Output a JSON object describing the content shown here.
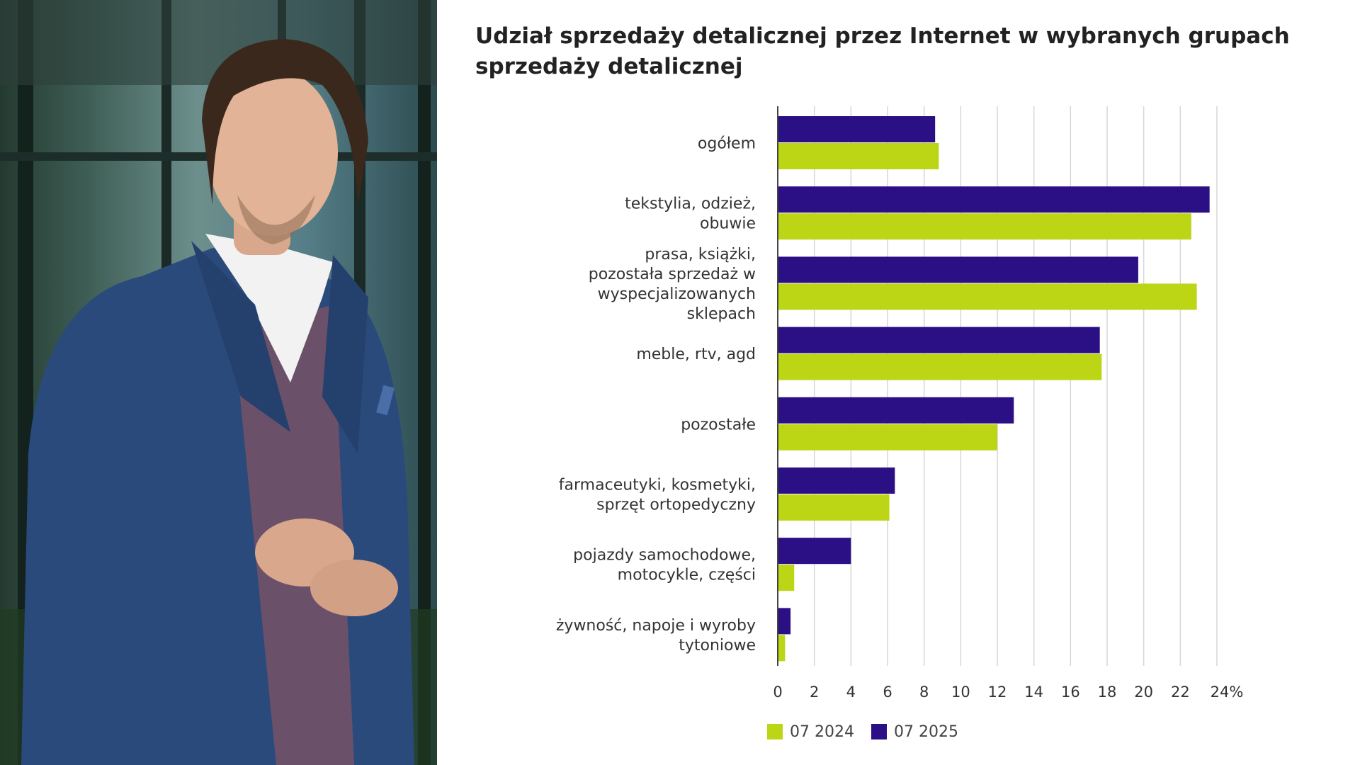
{
  "chart_data": {
    "type": "bar",
    "orientation": "horizontal",
    "title": "Udział sprzedaży detalicznej przez Internet w wybranych grupach sprzedaży detalicznej",
    "categories": [
      [
        "ogółem"
      ],
      [
        "tekstylia, odzież,",
        "obuwie"
      ],
      [
        "prasa, książki,",
        "pozostała sprzedaż w",
        "wyspecjalizowanych",
        "sklepach"
      ],
      [
        "meble, rtv, agd"
      ],
      [
        "pozostałe"
      ],
      [
        "farmaceutyki, kosmetyki,",
        "sprzęt ortopedyczny"
      ],
      [
        "pojazdy samochodowe,",
        "motocykle, części"
      ],
      [
        "żywność, napoje i wyroby",
        "tytoniowe"
      ]
    ],
    "series": [
      {
        "name": "07 2025",
        "color": "#2a0f85",
        "values": [
          8.6,
          23.6,
          19.7,
          17.6,
          12.9,
          6.4,
          4.0,
          0.7
        ]
      },
      {
        "name": "07 2024",
        "color": "#bcd514",
        "values": [
          8.8,
          22.6,
          22.9,
          17.7,
          12.0,
          6.1,
          0.9,
          0.4
        ]
      }
    ],
    "legend_order": [
      "07 2024",
      "07 2025"
    ],
    "xlim": [
      0,
      24
    ],
    "x_ticks": [
      "0",
      "2",
      "4",
      "6",
      "8",
      "10",
      "12",
      "14",
      "16",
      "18",
      "20",
      "22",
      "24%"
    ],
    "grid": true,
    "legend_position": "bottom"
  }
}
